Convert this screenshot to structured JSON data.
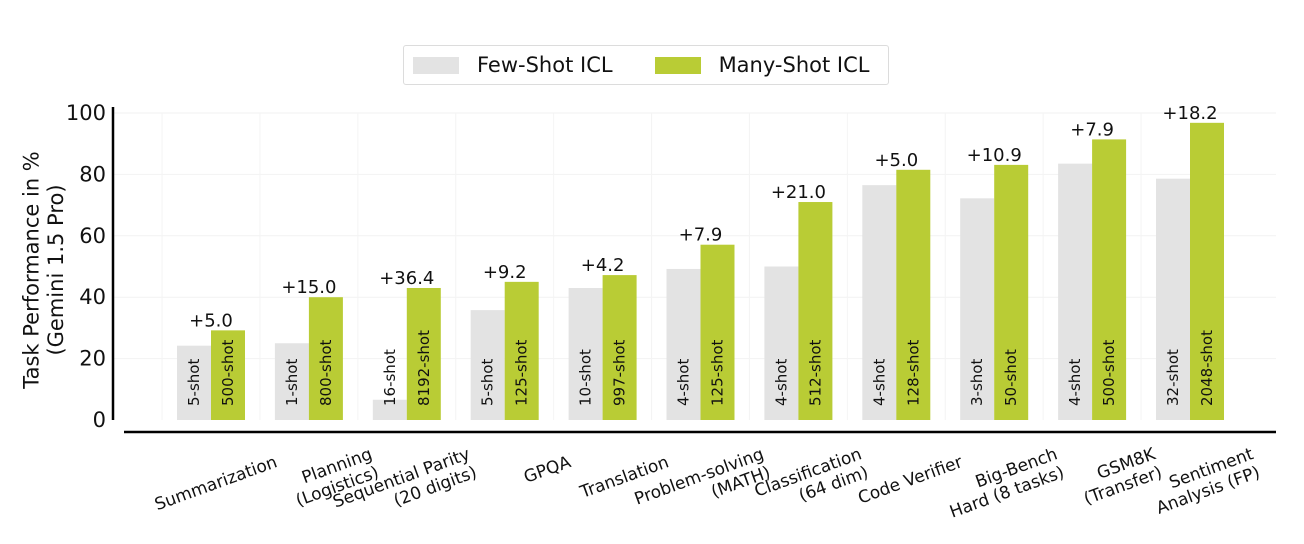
{
  "chart_data": {
    "type": "bar",
    "ylabel": "Task Performance in %\n(Gemini 1.5 Pro)",
    "ylim": [
      0,
      100
    ],
    "yticks": [
      0,
      20,
      40,
      60,
      80,
      100
    ],
    "legend_position": "top-center",
    "categories": [
      "Summarization",
      "Planning\n(Logistics)",
      "Sequential Parity\n(20 digits)",
      "GPQA",
      "Translation",
      "Problem-solving\n(MATH)",
      "Classification\n(64 dim)",
      "Code Verifier",
      "Big-Bench\nHard (8 tasks)",
      "GSM8K\n(Transfer)",
      "Sentiment\nAnalysis (FP)"
    ],
    "series": [
      {
        "name": "Few-Shot ICL",
        "color": "#e3e3e3",
        "values": [
          24.2,
          25.0,
          6.6,
          35.8,
          43.0,
          49.2,
          50.0,
          76.5,
          72.2,
          83.5,
          78.6
        ],
        "shot_labels": [
          "5-shot",
          "1-shot",
          "16-shot",
          "5-shot",
          "10-shot",
          "4-shot",
          "4-shot",
          "4-shot",
          "3-shot",
          "4-shot",
          "32-shot"
        ]
      },
      {
        "name": "Many-Shot ICL",
        "color": "#b9cc35",
        "values": [
          29.2,
          40.0,
          43.0,
          45.0,
          47.2,
          57.1,
          71.0,
          81.5,
          83.1,
          91.4,
          96.8
        ],
        "shot_labels": [
          "500-shot",
          "800-shot",
          "8192-shot",
          "125-shot",
          "997-shot",
          "125-shot",
          "512-shot",
          "128-shot",
          "50-shot",
          "500-shot",
          "2048-shot"
        ]
      }
    ],
    "gain_labels": [
      "+5.0",
      "+15.0",
      "+36.4",
      "+9.2",
      "+4.2",
      "+7.9",
      "+21.0",
      "+5.0",
      "+10.9",
      "+7.9",
      "+18.2"
    ]
  }
}
